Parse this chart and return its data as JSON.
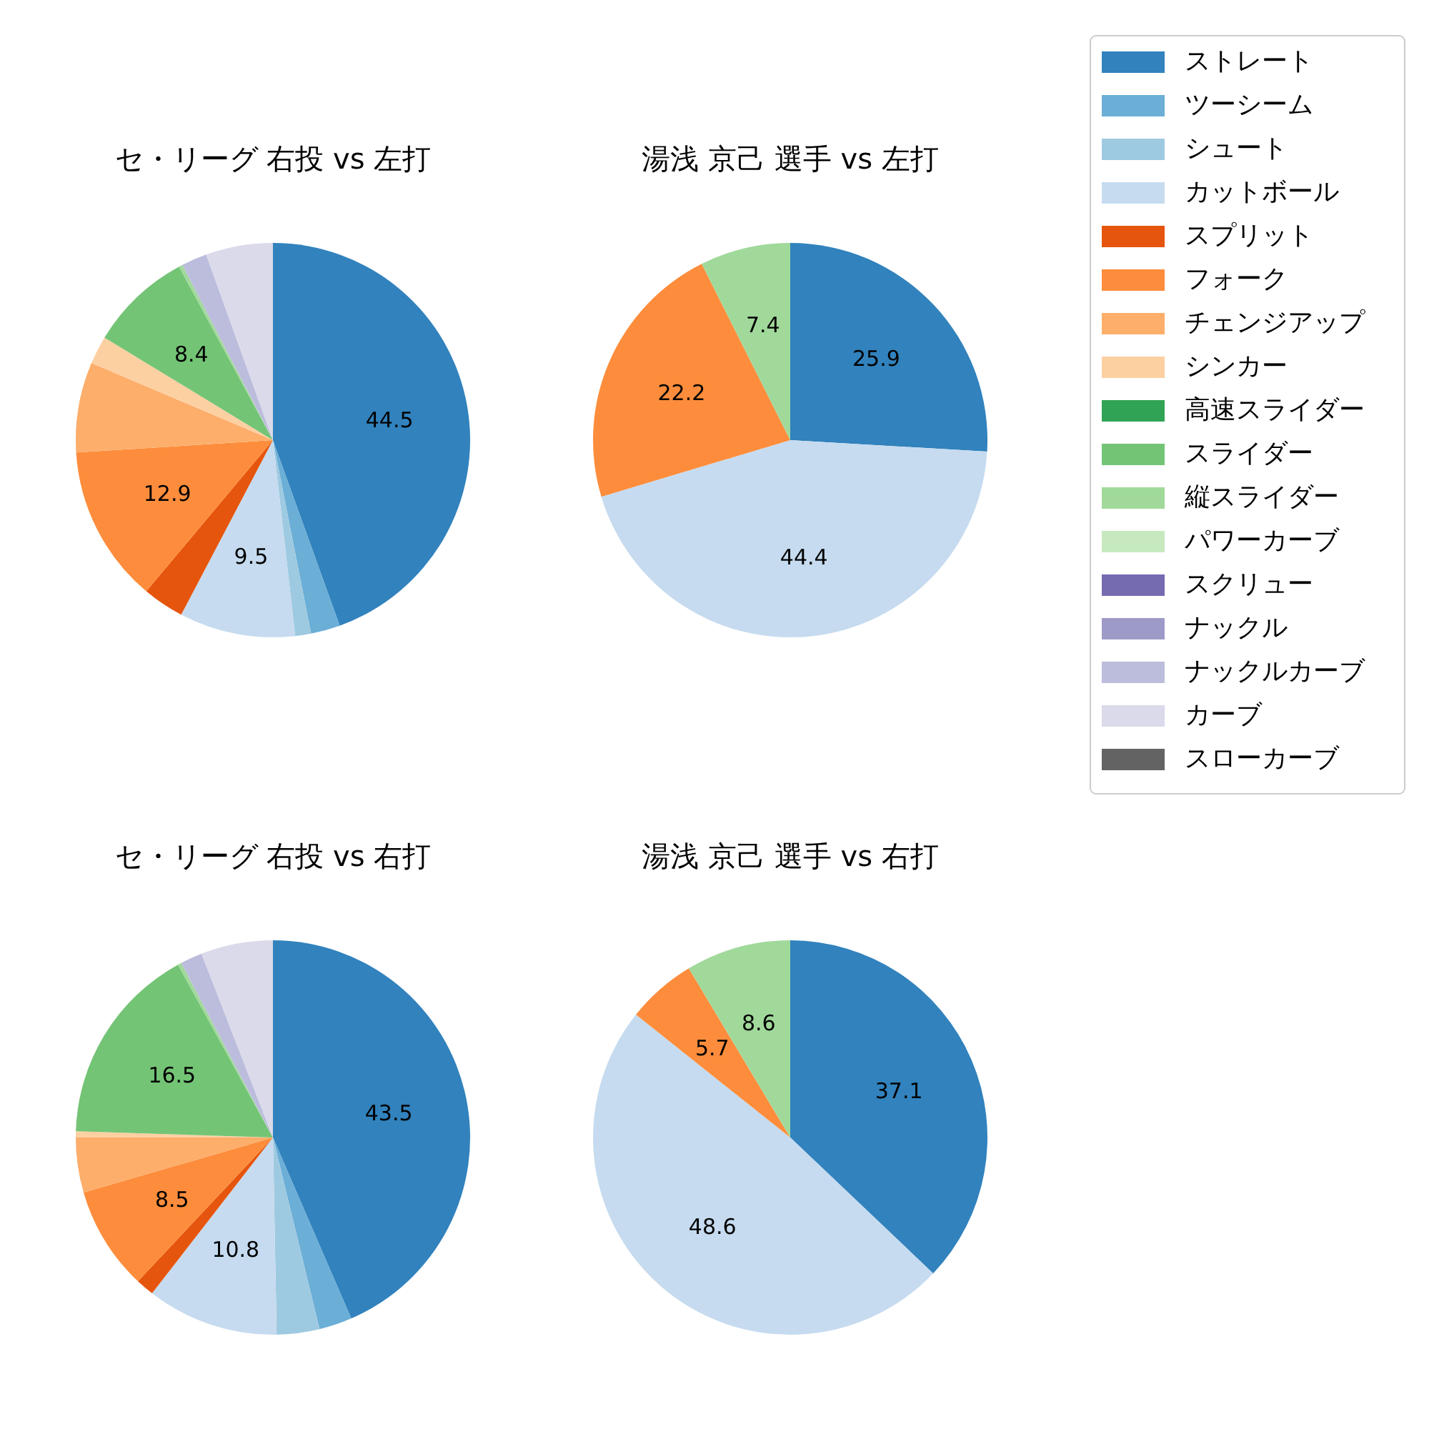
{
  "chart_data": [
    {
      "type": "pie",
      "title": "セ・リーグ 右投 vs 左打",
      "legend": "right",
      "categories": [
        "ストレート",
        "ツーシーム",
        "シュート",
        "カットボール",
        "スプリット",
        "フォーク",
        "チェンジアップ",
        "シンカー",
        "高速スライダー",
        "スライダー",
        "縦スライダー",
        "パワーカーブ",
        "スクリュー",
        "ナックル",
        "ナックルカーブ",
        "カーブ",
        "スローカーブ"
      ],
      "values": [
        44.5,
        2.4,
        1.3,
        9.5,
        3.4,
        12.9,
        7.4,
        2.3,
        0,
        8.4,
        0.3,
        0,
        0,
        0,
        2.1,
        5.5,
        0
      ],
      "value_labels": [
        "44.5",
        null,
        null,
        "9.5",
        null,
        "12.9",
        null,
        null,
        null,
        "8.4",
        null,
        null,
        null,
        null,
        null,
        null,
        null
      ],
      "colors": [
        "#3182bd",
        "#6baed6",
        "#9ecae1",
        "#c6dbef",
        "#e6550d",
        "#fd8d3c",
        "#fdae6b",
        "#fdd0a2",
        "#31a354",
        "#74c476",
        "#a1d99b",
        "#c7e9c0",
        "#756bb1",
        "#9e9ac8",
        "#bcbddc",
        "#dadaeb",
        "#636363"
      ]
    },
    {
      "type": "pie",
      "title": "湯浅 京己 選手 vs 左打",
      "categories": [
        null,
        null,
        null,
        null
      ],
      "values": [
        25.9,
        44.4,
        22.2,
        7.4
      ],
      "value_labels": [
        "25.9",
        "44.4",
        "22.2",
        "7.4"
      ],
      "colors": [
        "#3182bd",
        "#c6dbef",
        "#fd8d3c",
        "#a1d99b"
      ]
    },
    {
      "type": "pie",
      "title": "セ・リーグ 右投 vs 右打",
      "categories": [
        null,
        null,
        null,
        null,
        null,
        null,
        null,
        null,
        null,
        null,
        null,
        null
      ],
      "values": [
        43.5,
        2.7,
        3.5,
        10.8,
        1.5,
        8.5,
        4.5,
        0.5,
        16.5,
        0.3,
        1.8,
        5.9
      ],
      "value_labels": [
        "43.5",
        null,
        null,
        "10.8",
        null,
        "8.5",
        null,
        null,
        "16.5",
        null,
        null,
        null
      ],
      "colors": [
        "#3182bd",
        "#6baed6",
        "#9ecae1",
        "#c6dbef",
        "#e6550d",
        "#fd8d3c",
        "#fdae6b",
        "#fdd0a2",
        "#74c476",
        "#a1d99b",
        "#bcbddc",
        "#dadaeb"
      ]
    },
    {
      "type": "pie",
      "title": "湯浅 京己 選手 vs 右打",
      "categories": [
        null,
        null,
        null,
        null
      ],
      "values": [
        37.1,
        48.6,
        5.7,
        8.6
      ],
      "value_labels": [
        "37.1",
        "48.6",
        "5.7",
        "8.6"
      ],
      "colors": [
        "#3182bd",
        "#c6dbef",
        "#fd8d3c",
        "#a1d99b"
      ]
    }
  ]
}
